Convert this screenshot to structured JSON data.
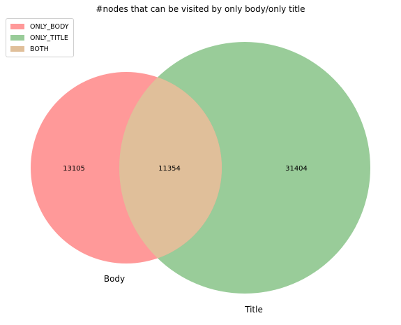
{
  "title": "#nodes that can be visited by only body/only title",
  "legend": [
    {
      "label": "ONLY_BODY",
      "color": "#ff9999"
    },
    {
      "label": "ONLY_TITLE",
      "color": "#99cc99"
    },
    {
      "label": "BOTH",
      "color": "#e0bf9a"
    }
  ],
  "sets": {
    "body_label": "Body",
    "title_label": "Title"
  },
  "regions": {
    "only_body": "13105",
    "both": "11354",
    "only_title": "31404"
  },
  "colors": {
    "only_body": "#ff9999",
    "only_title": "#99cc99",
    "both": "#e0bf9a"
  }
}
